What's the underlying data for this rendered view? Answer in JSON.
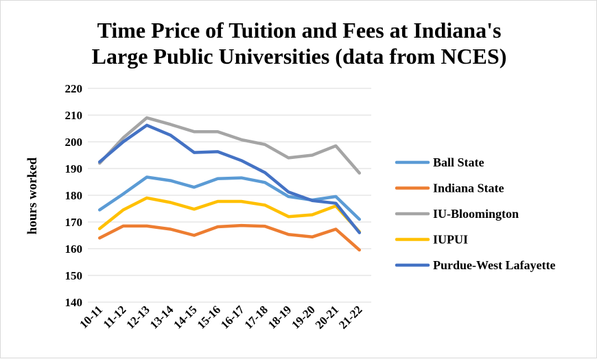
{
  "chart_data": {
    "type": "line",
    "title_line1": "Time Price of Tuition and Fees at Indiana's",
    "title_line2": "Large Public Universities (data from NCES)",
    "ylabel": "hours worked",
    "xlabel": "",
    "ylim": [
      140,
      220
    ],
    "yticks": [
      140,
      150,
      160,
      170,
      180,
      190,
      200,
      210,
      220
    ],
    "categories": [
      "10-11",
      "11-12",
      "12-13",
      "13-14",
      "14-15",
      "15-16",
      "16-17",
      "17-18",
      "18-19",
      "19-20",
      "20-21",
      "21-22"
    ],
    "grid": true,
    "legend_position": "right",
    "series": [
      {
        "name": "Ball State",
        "color": "#5B9BD5",
        "values": [
          174.5,
          180.5,
          186.8,
          185.5,
          183.0,
          186.2,
          186.5,
          184.8,
          179.5,
          178.2,
          179.5,
          171.0
        ]
      },
      {
        "name": "Indiana State",
        "color": "#ED7D31",
        "values": [
          164.0,
          168.5,
          168.5,
          167.3,
          165.0,
          168.2,
          168.7,
          168.4,
          165.3,
          164.4,
          167.3,
          159.5
        ]
      },
      {
        "name": "IU-Bloomington",
        "color": "#A5A5A5",
        "values": [
          192.0,
          201.5,
          209.0,
          206.5,
          203.8,
          203.8,
          200.8,
          199.0,
          194.0,
          195.0,
          198.5,
          188.3
        ]
      },
      {
        "name": "IUPUI",
        "color": "#FFC000",
        "values": [
          167.5,
          174.5,
          179.0,
          177.3,
          174.8,
          177.7,
          177.7,
          176.3,
          172.0,
          172.7,
          176.0,
          166.3
        ]
      },
      {
        "name": "Purdue-West Lafayette",
        "color": "#4472C4",
        "values": [
          192.5,
          200.0,
          206.2,
          202.5,
          196.0,
          196.3,
          193.0,
          188.5,
          181.2,
          178.0,
          177.0,
          166.0
        ]
      }
    ]
  }
}
